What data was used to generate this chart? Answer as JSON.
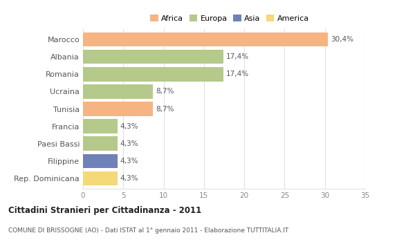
{
  "categories": [
    "Marocco",
    "Albania",
    "Romania",
    "Ucraina",
    "Tunisia",
    "Francia",
    "Paesi Bassi",
    "Filippine",
    "Rep. Dominicana"
  ],
  "values": [
    30.4,
    17.4,
    17.4,
    8.7,
    8.7,
    4.3,
    4.3,
    4.3,
    4.3
  ],
  "labels": [
    "30,4%",
    "17,4%",
    "17,4%",
    "8,7%",
    "8,7%",
    "4,3%",
    "4,3%",
    "4,3%",
    "4,3%"
  ],
  "colors": [
    "#f5b482",
    "#b5c98a",
    "#b5c98a",
    "#b5c98a",
    "#f5b482",
    "#b5c98a",
    "#b5c98a",
    "#7080b8",
    "#f5d878"
  ],
  "legend_labels": [
    "Africa",
    "Europa",
    "Asia",
    "America"
  ],
  "legend_colors": [
    "#f5b482",
    "#b5c98a",
    "#7080b8",
    "#f5d878"
  ],
  "title": "Cittadini Stranieri per Cittadinanza - 2011",
  "subtitle": "COMUNE DI BRISSOGNE (AO) - Dati ISTAT al 1° gennaio 2011 - Elaborazione TUTTITALIA.IT",
  "xlim": [
    0,
    35
  ],
  "xticks": [
    0,
    5,
    10,
    15,
    20,
    25,
    30,
    35
  ],
  "background_color": "#ffffff",
  "grid_color": "#e0e0e0"
}
